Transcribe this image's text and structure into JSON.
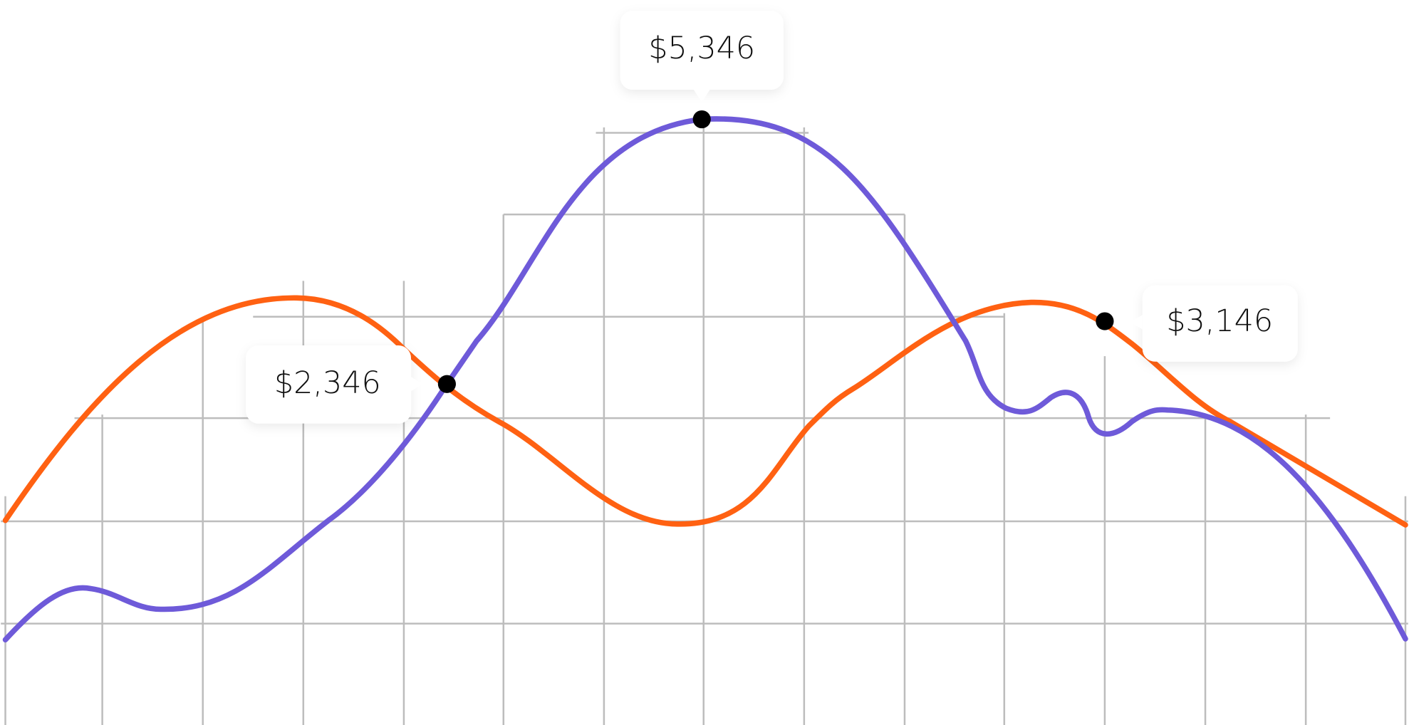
{
  "callouts": [
    {
      "label": "$2,346"
    },
    {
      "label": "$5,346"
    },
    {
      "label": "$3,146"
    }
  ]
}
